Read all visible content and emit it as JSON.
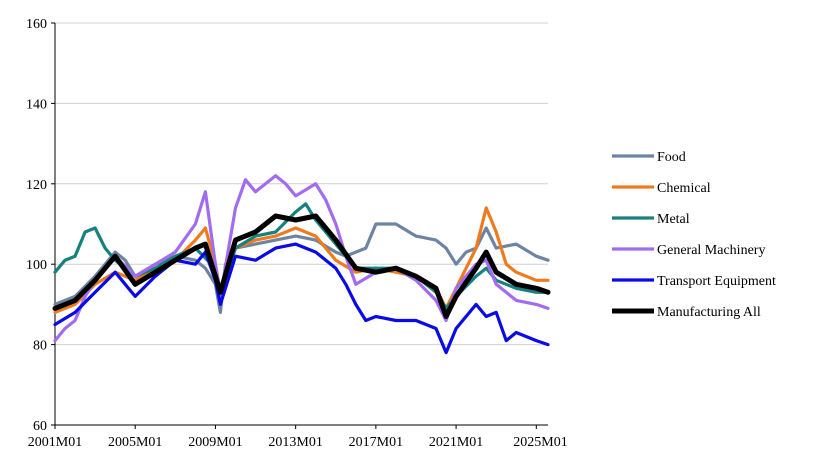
{
  "chart_data": {
    "type": "line",
    "ylim": [
      60,
      160
    ],
    "yticks": [
      60,
      80,
      100,
      120,
      140,
      160
    ],
    "xlim": [
      "2001M01",
      "2025M08"
    ],
    "xticks": [
      "2001M01",
      "2005M01",
      "2009M01",
      "2013M01",
      "2017M01",
      "2021M01",
      "2025M01"
    ],
    "grid": "horizontal",
    "legend": "right",
    "series": [
      {
        "name": "Food",
        "color": "#6e84a3",
        "points": [
          [
            "2001M01",
            90
          ],
          [
            "2002M01",
            92
          ],
          [
            "2003M01",
            97
          ],
          [
            "2004M01",
            103
          ],
          [
            "2004M07",
            101
          ],
          [
            "2005M01",
            97
          ],
          [
            "2006M01",
            100
          ],
          [
            "2007M01",
            102
          ],
          [
            "2008M01",
            101
          ],
          [
            "2008M07",
            99
          ],
          [
            "2009M01",
            95
          ],
          [
            "2009M04",
            88
          ],
          [
            "2009M07",
            100
          ],
          [
            "2010M01",
            104
          ],
          [
            "2011M01",
            105
          ],
          [
            "2012M01",
            106
          ],
          [
            "2013M01",
            107
          ],
          [
            "2014M01",
            106
          ],
          [
            "2015M01",
            103
          ],
          [
            "2015M07",
            102
          ],
          [
            "2016M01",
            103
          ],
          [
            "2016M07",
            104
          ],
          [
            "2017M01",
            110
          ],
          [
            "2018M01",
            110
          ],
          [
            "2019M01",
            107
          ],
          [
            "2020M01",
            106
          ],
          [
            "2020M07",
            104
          ],
          [
            "2021M01",
            100
          ],
          [
            "2021M07",
            103
          ],
          [
            "2022M01",
            104
          ],
          [
            "2022M07",
            109
          ],
          [
            "2023M01",
            104
          ],
          [
            "2024M01",
            105
          ],
          [
            "2025M01",
            102
          ],
          [
            "2025M08",
            101
          ]
        ]
      },
      {
        "name": "Chemical",
        "color": "#f07b1f",
        "points": [
          [
            "2001M01",
            88
          ],
          [
            "2002M01",
            90
          ],
          [
            "2003M01",
            95
          ],
          [
            "2004M01",
            98
          ],
          [
            "2005M01",
            96
          ],
          [
            "2006M01",
            99
          ],
          [
            "2007M01",
            101
          ],
          [
            "2008M01",
            106
          ],
          [
            "2008M07",
            109
          ],
          [
            "2009M01",
            100
          ],
          [
            "2009M04",
            93
          ],
          [
            "2010M01",
            104
          ],
          [
            "2011M01",
            106
          ],
          [
            "2012M01",
            107
          ],
          [
            "2013M01",
            109
          ],
          [
            "2014M01",
            107
          ],
          [
            "2015M01",
            101
          ],
          [
            "2016M01",
            98
          ],
          [
            "2017M01",
            99
          ],
          [
            "2018M01",
            98
          ],
          [
            "2019M01",
            97
          ],
          [
            "2020M01",
            94
          ],
          [
            "2020M07",
            89
          ],
          [
            "2021M01",
            94
          ],
          [
            "2022M01",
            104
          ],
          [
            "2022M07",
            114
          ],
          [
            "2023M01",
            108
          ],
          [
            "2023M07",
            100
          ],
          [
            "2024M01",
            98
          ],
          [
            "2025M01",
            96
          ],
          [
            "2025M08",
            96
          ]
        ]
      },
      {
        "name": "Metal",
        "color": "#178080",
        "points": [
          [
            "2001M01",
            98
          ],
          [
            "2001M07",
            101
          ],
          [
            "2002M01",
            102
          ],
          [
            "2002M07",
            108
          ],
          [
            "2003M01",
            109
          ],
          [
            "2003M07",
            104
          ],
          [
            "2004M01",
            101
          ],
          [
            "2005M01",
            97
          ],
          [
            "2006M01",
            99
          ],
          [
            "2007M01",
            102
          ],
          [
            "2008M01",
            104
          ],
          [
            "2009M01",
            99
          ],
          [
            "2009M04",
            93
          ],
          [
            "2010M01",
            104
          ],
          [
            "2011M01",
            107
          ],
          [
            "2012M01",
            108
          ],
          [
            "2013M01",
            113
          ],
          [
            "2013M07",
            115
          ],
          [
            "2014M01",
            111
          ],
          [
            "2015M01",
            105
          ],
          [
            "2016M01",
            99
          ],
          [
            "2017M01",
            99
          ],
          [
            "2018M01",
            99
          ],
          [
            "2019M01",
            97
          ],
          [
            "2020M01",
            93
          ],
          [
            "2020M07",
            89
          ],
          [
            "2021M01",
            92
          ],
          [
            "2022M01",
            97
          ],
          [
            "2022M07",
            99
          ],
          [
            "2023M01",
            96
          ],
          [
            "2024M01",
            94
          ],
          [
            "2025M01",
            93
          ],
          [
            "2025M08",
            93
          ]
        ]
      },
      {
        "name": "General Machinery",
        "color": "#a26cf0",
        "points": [
          [
            "2001M01",
            81
          ],
          [
            "2001M07",
            84
          ],
          [
            "2002M01",
            86
          ],
          [
            "2002M07",
            92
          ],
          [
            "2003M01",
            96
          ],
          [
            "2004M01",
            102
          ],
          [
            "2005M01",
            97
          ],
          [
            "2006M01",
            100
          ],
          [
            "2007M01",
            103
          ],
          [
            "2008M01",
            110
          ],
          [
            "2008M07",
            118
          ],
          [
            "2009M01",
            100
          ],
          [
            "2009M04",
            92
          ],
          [
            "2010M01",
            114
          ],
          [
            "2010M07",
            121
          ],
          [
            "2011M01",
            118
          ],
          [
            "2012M01",
            122
          ],
          [
            "2012M07",
            120
          ],
          [
            "2013M01",
            117
          ],
          [
            "2014M01",
            120
          ],
          [
            "2014M07",
            116
          ],
          [
            "2015M01",
            110
          ],
          [
            "2015M07",
            102
          ],
          [
            "2016M01",
            95
          ],
          [
            "2017M01",
            98
          ],
          [
            "2018M01",
            99
          ],
          [
            "2019M01",
            96
          ],
          [
            "2020M01",
            91
          ],
          [
            "2020M07",
            86
          ],
          [
            "2021M01",
            94
          ],
          [
            "2022M01",
            100
          ],
          [
            "2022M07",
            101
          ],
          [
            "2023M01",
            95
          ],
          [
            "2024M01",
            91
          ],
          [
            "2025M01",
            90
          ],
          [
            "2025M08",
            89
          ]
        ]
      },
      {
        "name": "Transport Equipment",
        "color": "#0a0ae6",
        "points": [
          [
            "2001M01",
            85
          ],
          [
            "2002M01",
            88
          ],
          [
            "2003M01",
            93
          ],
          [
            "2004M01",
            98
          ],
          [
            "2005M01",
            92
          ],
          [
            "2006M01",
            97
          ],
          [
            "2007M01",
            101
          ],
          [
            "2008M01",
            100
          ],
          [
            "2008M07",
            103
          ],
          [
            "2009M01",
            96
          ],
          [
            "2009M04",
            90
          ],
          [
            "2010M01",
            102
          ],
          [
            "2011M01",
            101
          ],
          [
            "2012M01",
            104
          ],
          [
            "2013M01",
            105
          ],
          [
            "2014M01",
            103
          ],
          [
            "2015M01",
            99
          ],
          [
            "2015M07",
            95
          ],
          [
            "2016M01",
            90
          ],
          [
            "2016M07",
            86
          ],
          [
            "2017M01",
            87
          ],
          [
            "2018M01",
            86
          ],
          [
            "2019M01",
            86
          ],
          [
            "2020M01",
            84
          ],
          [
            "2020M07",
            78
          ],
          [
            "2021M01",
            84
          ],
          [
            "2022M01",
            90
          ],
          [
            "2022M07",
            87
          ],
          [
            "2023M01",
            88
          ],
          [
            "2023M07",
            81
          ],
          [
            "2024M01",
            83
          ],
          [
            "2025M01",
            81
          ],
          [
            "2025M08",
            80
          ]
        ]
      },
      {
        "name": "Manufacturing All",
        "color": "#000000",
        "points": [
          [
            "2001M01",
            89
          ],
          [
            "2002M01",
            91
          ],
          [
            "2003M01",
            96
          ],
          [
            "2004M01",
            102
          ],
          [
            "2005M01",
            95
          ],
          [
            "2006M01",
            98
          ],
          [
            "2007M01",
            101
          ],
          [
            "2008M01",
            104
          ],
          [
            "2008M07",
            105
          ],
          [
            "2009M01",
            97
          ],
          [
            "2009M04",
            93
          ],
          [
            "2010M01",
            106
          ],
          [
            "2011M01",
            108
          ],
          [
            "2012M01",
            112
          ],
          [
            "2013M01",
            111
          ],
          [
            "2014M01",
            112
          ],
          [
            "2015M01",
            106
          ],
          [
            "2016M01",
            99
          ],
          [
            "2017M01",
            98
          ],
          [
            "2018M01",
            99
          ],
          [
            "2019M01",
            97
          ],
          [
            "2020M01",
            94
          ],
          [
            "2020M07",
            87
          ],
          [
            "2021M01",
            92
          ],
          [
            "2022M01",
            99
          ],
          [
            "2022M07",
            103
          ],
          [
            "2023M01",
            98
          ],
          [
            "2024M01",
            95
          ],
          [
            "2025M01",
            94
          ],
          [
            "2025M08",
            93
          ]
        ]
      }
    ]
  }
}
